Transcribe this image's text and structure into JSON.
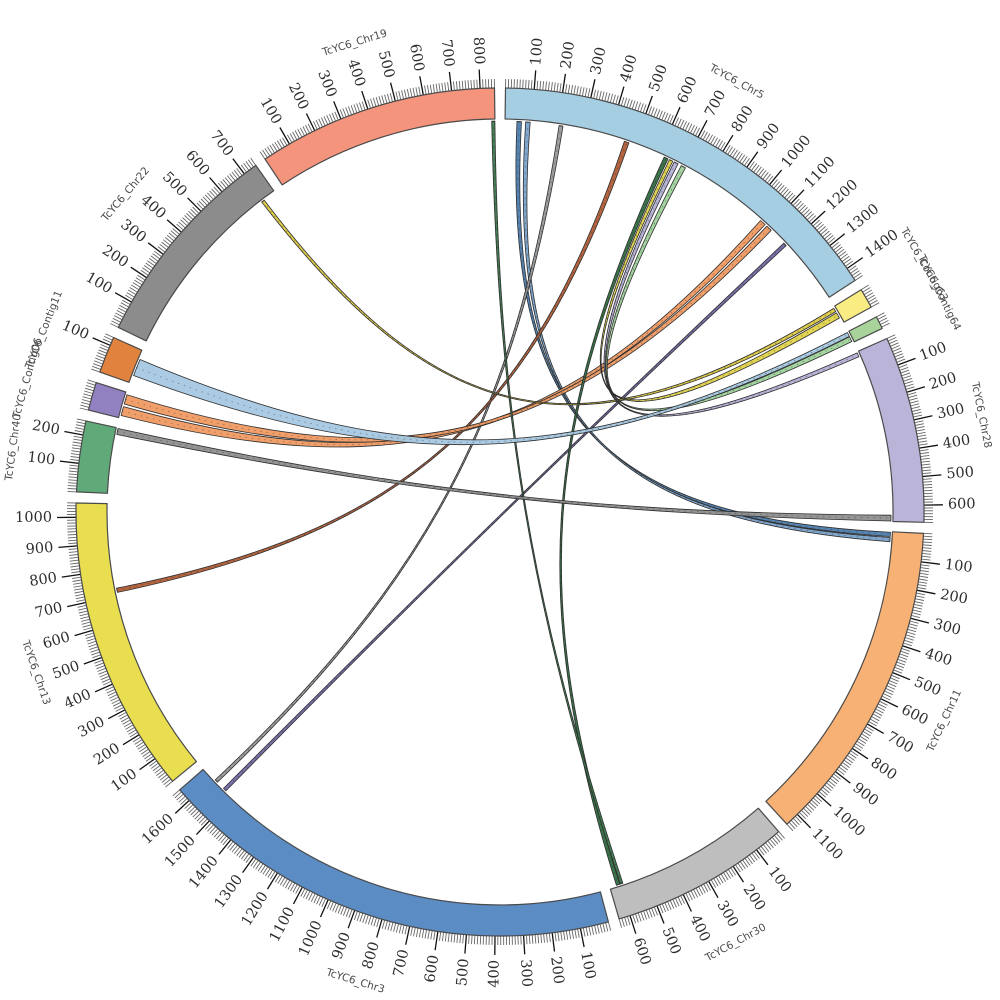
{
  "chart_data": {
    "type": "circos-chord-synteny",
    "title": "",
    "background": "#ffffff",
    "layout_hints": {
      "direction": "clockwise-from-top",
      "minor_tick_interval": 10,
      "major_tick_interval": 100,
      "gap_degrees": 1.5,
      "outline_color": "#4a4a4a",
      "minor_tick_color": "#666666",
      "major_tick_color": "#111111"
    },
    "segments": [
      {
        "id": "Chr5",
        "label": "TcYC6_Chr5",
        "color": "#a6cee3",
        "length": 1450,
        "tick_labels": [
          100,
          200,
          300,
          400,
          500,
          600,
          700,
          800,
          900,
          1000,
          1100,
          1200,
          1300,
          1400
        ]
      },
      {
        "id": "Contig63",
        "label": "TcYC6_Contig63",
        "color": "#f8ec82",
        "length": 70,
        "tick_labels": []
      },
      {
        "id": "Contig64",
        "label": "TcYC6_Contig64",
        "color": "#a8d39a",
        "length": 45,
        "tick_labels": []
      },
      {
        "id": "Chr28",
        "label": "TcYC6_Chr28",
        "color": "#b9b4d8",
        "length": 660,
        "tick_labels": [
          100,
          200,
          300,
          400,
          500,
          600
        ]
      },
      {
        "id": "Chr11",
        "label": "TcYC6_Chr11",
        "color": "#f7b174",
        "length": 1150,
        "tick_labels": [
          100,
          200,
          300,
          400,
          500,
          600,
          700,
          800,
          900,
          1000,
          1100
        ]
      },
      {
        "id": "Chr30",
        "label": "TcYC6_Chr30",
        "color": "#bebebe",
        "length": 640,
        "tick_labels": [
          100,
          200,
          300,
          400,
          500,
          600
        ]
      },
      {
        "id": "Chr3",
        "label": "TcYC6_Chr3",
        "color": "#5b8cc4",
        "length": 1650,
        "tick_labels": [
          100,
          200,
          300,
          400,
          500,
          600,
          700,
          800,
          900,
          1000,
          1100,
          1200,
          1300,
          1400,
          1500,
          1600
        ]
      },
      {
        "id": "Chr13",
        "label": "TcYC6_Chr13",
        "color": "#e8de4f",
        "length": 1050,
        "tick_labels": [
          100,
          200,
          300,
          400,
          500,
          600,
          700,
          800,
          900,
          1000
        ]
      },
      {
        "id": "Chr40",
        "label": "TcYC6_Chr40",
        "color": "#5faa78",
        "length": 250,
        "tick_labels": [
          100,
          200
        ]
      },
      {
        "id": "Contig06",
        "label": "TcYC6_Contig06",
        "color": "#9181c0",
        "length": 100,
        "tick_labels": []
      },
      {
        "id": "Contig11",
        "label": "TcYC6_Contig11",
        "color": "#e2823f",
        "length": 130,
        "tick_labels": [
          100
        ]
      },
      {
        "id": "Chr22",
        "label": "TcYC6_Chr22",
        "color": "#8c8c8c",
        "length": 750,
        "tick_labels": [
          100,
          200,
          300,
          400,
          500,
          600,
          700
        ]
      },
      {
        "id": "Chr19",
        "label": "TcYC6_Chr19",
        "color": "#f4947c",
        "length": 850,
        "tick_labels": [
          100,
          200,
          300,
          400,
          500,
          600,
          700,
          800
        ]
      }
    ],
    "links": [
      {
        "source": {
          "segment": "Chr5",
          "start": 45,
          "end": 62
        },
        "target": {
          "segment": "Chr11",
          "start": 2,
          "end": 18
        },
        "color": "#4d7eb0"
      },
      {
        "source": {
          "segment": "Chr5",
          "start": 78,
          "end": 95
        },
        "target": {
          "segment": "Chr11",
          "start": 22,
          "end": 38
        },
        "color": "#7aa3cc"
      },
      {
        "source": {
          "segment": "Chr5",
          "start": 205,
          "end": 220
        },
        "target": {
          "segment": "Chr3",
          "start": 1578,
          "end": 1590
        },
        "color": "#9a9a9a"
      },
      {
        "source": {
          "segment": "Chr13",
          "start": 712,
          "end": 728
        },
        "target": {
          "segment": "Chr5",
          "start": 460,
          "end": 478
        },
        "color": "#b05c35"
      },
      {
        "source": {
          "segment": "Contig06",
          "start": 10,
          "end": 45
        },
        "target": {
          "segment": "Chr5",
          "start": 1060,
          "end": 1083
        },
        "color": "#f09a62"
      },
      {
        "source": {
          "segment": "Contig06",
          "start": 55,
          "end": 92
        },
        "target": {
          "segment": "Chr5",
          "start": 1092,
          "end": 1115
        },
        "color": "#f09a62"
      },
      {
        "source": {
          "segment": "Chr5",
          "start": 1183,
          "end": 1196
        },
        "target": {
          "segment": "Chr3",
          "start": 1532,
          "end": 1545
        },
        "color": "#7668a8"
      },
      {
        "source": {
          "segment": "Chr5",
          "start": 622,
          "end": 638
        },
        "target": {
          "segment": "Chr30",
          "start": 600,
          "end": 614
        },
        "color": "#2f6b3f"
      },
      {
        "source": {
          "segment": "Chr19",
          "start": 838,
          "end": 850
        },
        "target": {
          "segment": "Chr30",
          "start": 588,
          "end": 598
        },
        "color": "#3c7a4d"
      },
      {
        "source": {
          "segment": "Chr22",
          "start": 688,
          "end": 700
        },
        "target": {
          "segment": "Contig63",
          "start": 6,
          "end": 20
        },
        "color": "#decb42"
      },
      {
        "source": {
          "segment": "Chr5",
          "start": 644,
          "end": 658
        },
        "target": {
          "segment": "Contig63",
          "start": 26,
          "end": 48
        },
        "color": "#e2d34b"
      },
      {
        "source": {
          "segment": "Chr5",
          "start": 664,
          "end": 680
        },
        "target": {
          "segment": "Chr28",
          "start": 4,
          "end": 20
        },
        "color": "#b3b0d6"
      },
      {
        "source": {
          "segment": "Chr5",
          "start": 694,
          "end": 712
        },
        "target": {
          "segment": "Contig64",
          "start": 20,
          "end": 40
        },
        "color": "#9fd29b"
      },
      {
        "source": {
          "segment": "Contig11",
          "start": 30,
          "end": 95
        },
        "target": {
          "segment": "Contig64",
          "start": 2,
          "end": 18
        },
        "color": "#a5c8e2"
      },
      {
        "source": {
          "segment": "Chr40",
          "start": 225,
          "end": 248
        },
        "target": {
          "segment": "Chr28",
          "start": 636,
          "end": 658
        },
        "color": "#8f8f8f"
      }
    ]
  }
}
